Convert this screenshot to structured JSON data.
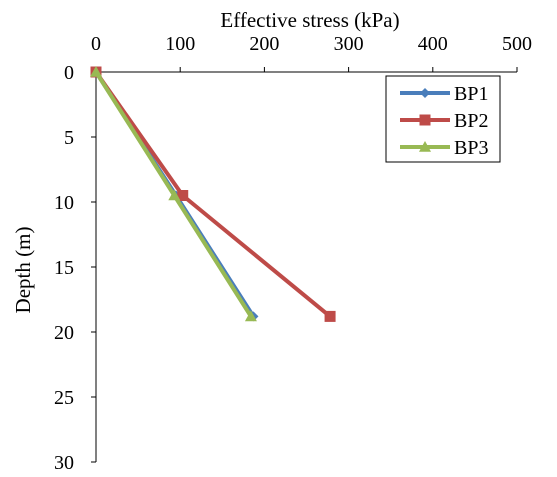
{
  "chart_data": {
    "type": "line",
    "title": "",
    "xlabel": "Effective stress (kPa)",
    "ylabel": "Depth (m)",
    "xlim": [
      0,
      500
    ],
    "ylim": [
      0,
      30
    ],
    "y_inverted": true,
    "x_axis_position": "top",
    "x_ticks": [
      0,
      100,
      200,
      300,
      400,
      500
    ],
    "y_ticks": [
      0,
      5,
      10,
      15,
      20,
      25,
      30
    ],
    "grid": false,
    "legend_position": "top-right",
    "series": [
      {
        "name": "BP1",
        "color": "#4a7ebb",
        "marker": "diamond",
        "x": [
          0,
          95,
          187
        ],
        "y": [
          0,
          9.5,
          18.8
        ]
      },
      {
        "name": "BP2",
        "color": "#be4b48",
        "marker": "square",
        "x": [
          0,
          103,
          278
        ],
        "y": [
          0,
          9.5,
          18.8
        ]
      },
      {
        "name": "BP3",
        "color": "#98b954",
        "marker": "triangle",
        "x": [
          0,
          93,
          184
        ],
        "y": [
          0,
          9.5,
          18.8
        ]
      }
    ]
  }
}
